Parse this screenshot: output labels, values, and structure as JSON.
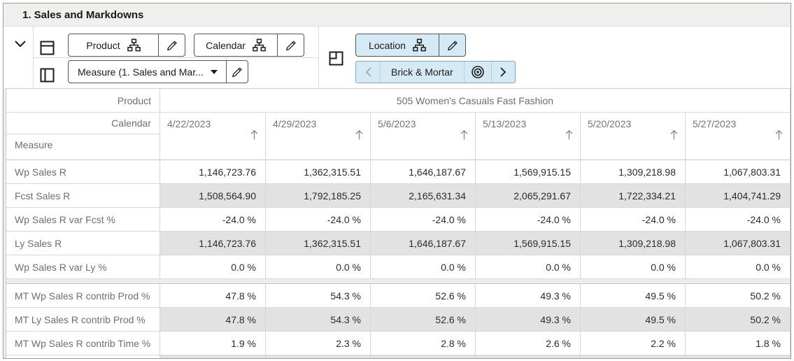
{
  "title_bar": {
    "title": "1. Sales and Markdowns"
  },
  "toolbar": {
    "product_button": {
      "label": "Product"
    },
    "calendar_button": {
      "label": "Calendar"
    },
    "measure_dropdown": {
      "label": "Measure (1. Sales and Mar..."
    },
    "location_button": {
      "label": "Location"
    },
    "location_pager": {
      "current": "Brick & Mortar"
    }
  },
  "pivot": {
    "product_axis_label": "Product",
    "product_value": "505 Women's Casuals Fast Fashion",
    "calendar_axis_label": "Calendar",
    "measure_axis_label": "Measure",
    "columns": [
      "4/22/2023",
      "4/29/2023",
      "5/6/2023",
      "5/13/2023",
      "5/20/2023",
      "5/27/2023"
    ],
    "rows": [
      {
        "label": "Wp Sales R",
        "shaded": false,
        "values": [
          "1,146,723.76",
          "1,362,315.51",
          "1,646,187.67",
          "1,569,915.15",
          "1,309,218.98",
          "1,067,803.31"
        ]
      },
      {
        "label": "Fcst Sales R",
        "shaded": true,
        "values": [
          "1,508,564.90",
          "1,792,185.25",
          "2,165,631.34",
          "2,065,291.67",
          "1,722,334.21",
          "1,404,741.29"
        ]
      },
      {
        "label": "Wp Sales R var Fcst %",
        "shaded": false,
        "values": [
          "-24.0 %",
          "-24.0 %",
          "-24.0 %",
          "-24.0 %",
          "-24.0 %",
          "-24.0 %"
        ]
      },
      {
        "label": "Ly Sales R",
        "shaded": true,
        "values": [
          "1,146,723.76",
          "1,362,315.51",
          "1,646,187.67",
          "1,569,915.15",
          "1,309,218.98",
          "1,067,803.31"
        ]
      },
      {
        "label": "Wp Sales R var Ly %",
        "shaded": false,
        "separator_after": true,
        "values": [
          "0.0 %",
          "0.0 %",
          "0.0 %",
          "0.0 %",
          "0.0 %",
          "0.0 %"
        ]
      },
      {
        "label": "MT Wp Sales R contrib Prod %",
        "shaded": false,
        "values": [
          "47.8 %",
          "54.3 %",
          "52.6 %",
          "49.3 %",
          "49.5 %",
          "50.2 %"
        ]
      },
      {
        "label": "MT Ly Sales R contrib Prod %",
        "shaded": true,
        "values": [
          "47.8 %",
          "54.3 %",
          "52.6 %",
          "49.3 %",
          "49.5 %",
          "50.2 %"
        ]
      },
      {
        "label": "MT Wp Sales R contrib Time %",
        "shaded": false,
        "values": [
          "1.9 %",
          "2.3 %",
          "2.8 %",
          "2.6 %",
          "2.2 %",
          "1.8 %"
        ]
      }
    ]
  },
  "colors": {
    "accent_blue_bg": "#d6eaf5",
    "shaded_row_bg": "#e2e2e2",
    "title_bar_bg": "#f1efee"
  }
}
